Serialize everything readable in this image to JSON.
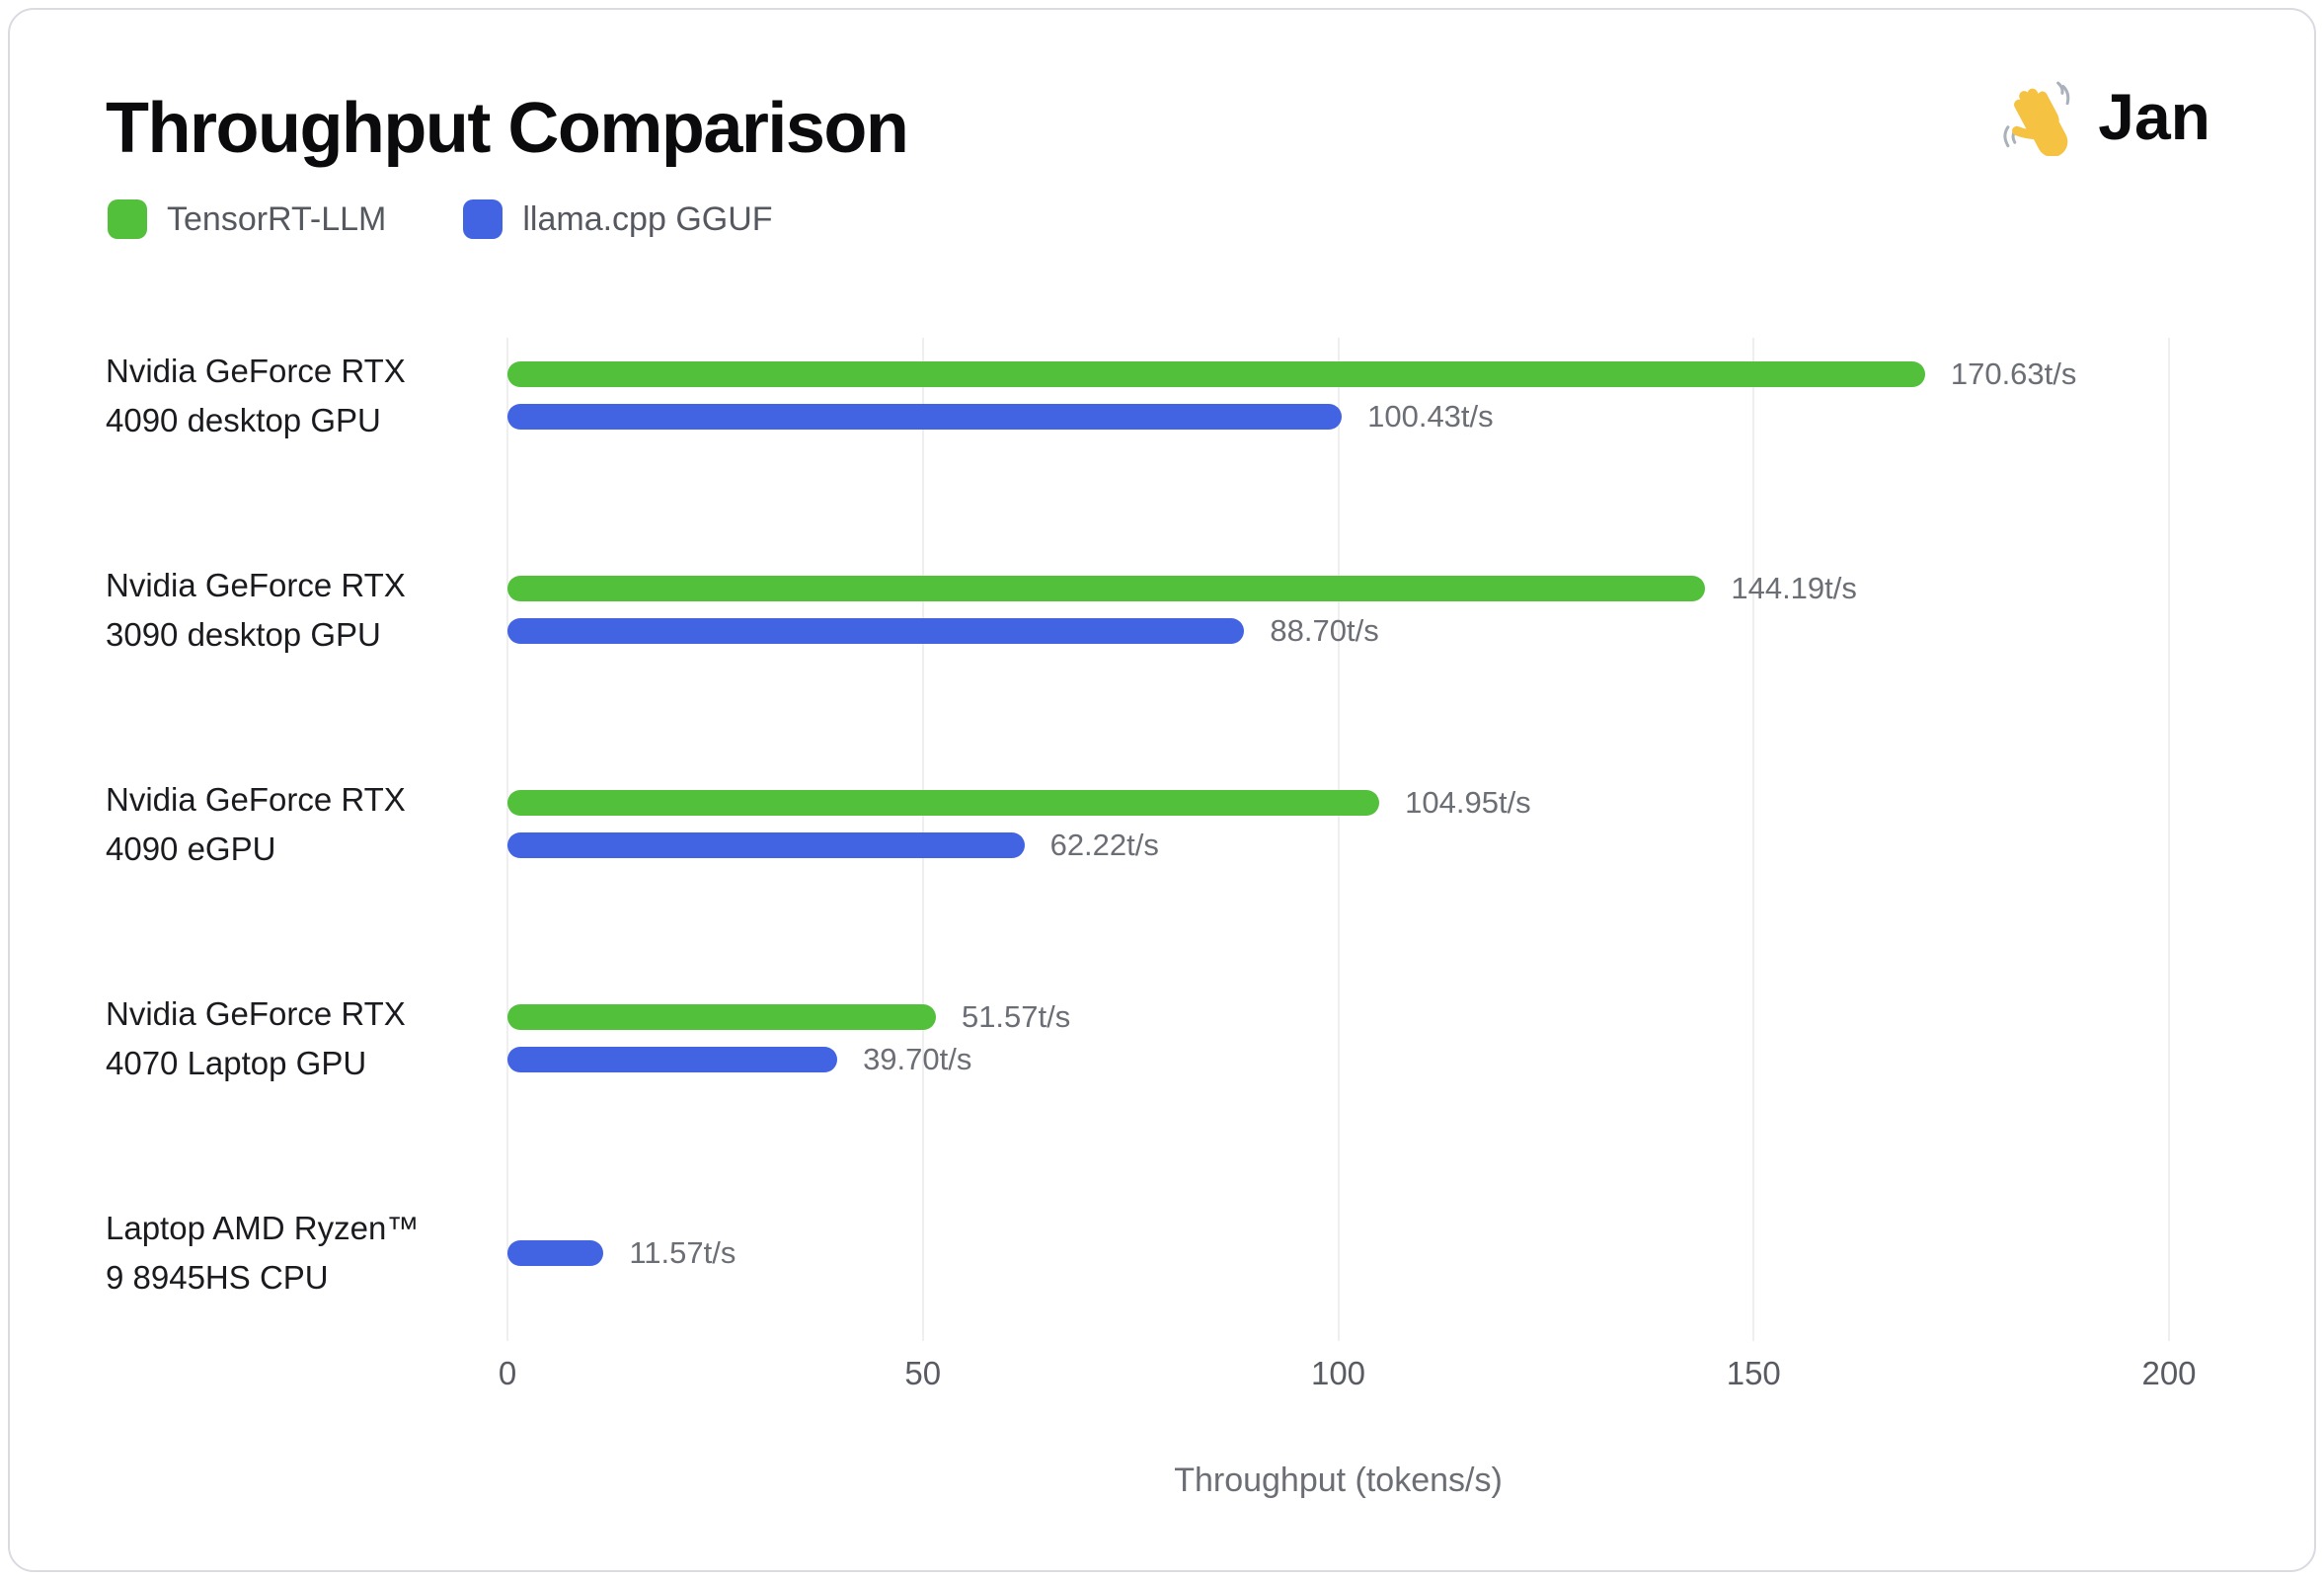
{
  "header": {
    "title": "Throughput Comparison",
    "logo": {
      "emoji": "👋",
      "text": "Jan"
    }
  },
  "legend": {
    "items": [
      {
        "key": "tensorrt-llm",
        "label": "TensorRT-LLM",
        "color": "#53c03c"
      },
      {
        "key": "llama-cpp-gguf",
        "label": "llama.cpp GGUF",
        "color": "#4263e2"
      }
    ]
  },
  "chart_data": {
    "type": "bar",
    "orientation": "horizontal",
    "title": "Throughput Comparison",
    "xlabel": "Throughput (tokens/s)",
    "xlim": [
      0,
      200
    ],
    "xticks": [
      "0",
      "50",
      "100",
      "150",
      "200"
    ],
    "grid": "vertical-only",
    "legend_position": "top-left",
    "colors": {
      "grid": "#efefef",
      "value_label": "#6b6e74",
      "tick_label": "#585b61"
    },
    "categories": [
      {
        "line1": "Nvidia GeForce RTX",
        "line2": "4090 desktop GPU"
      },
      {
        "line1": "Nvidia GeForce RTX",
        "line2": "3090 desktop GPU"
      },
      {
        "line1": "Nvidia GeForce RTX",
        "line2": "4090 eGPU"
      },
      {
        "line1": "Nvidia GeForce RTX",
        "line2": "4070 Laptop GPU"
      },
      {
        "line1": "Laptop AMD Ryzen™",
        "line2": "9 8945HS CPU"
      }
    ],
    "series": [
      {
        "name": "TensorRT-LLM",
        "key": "tensorrt-llm",
        "color": "#53c03c",
        "values": [
          170.63,
          144.19,
          104.95,
          51.57,
          null
        ],
        "value_labels": [
          "170.63t/s",
          "144.19t/s",
          "104.95t/s",
          "51.57t/s",
          null
        ]
      },
      {
        "name": "llama.cpp GGUF",
        "key": "llama-cpp-gguf",
        "color": "#4263e2",
        "values": [
          100.43,
          88.7,
          62.22,
          39.7,
          11.57
        ],
        "value_labels": [
          "100.43t/s",
          "88.70t/s",
          "62.22t/s",
          "39.70t/s",
          "11.57t/s"
        ]
      }
    ]
  }
}
